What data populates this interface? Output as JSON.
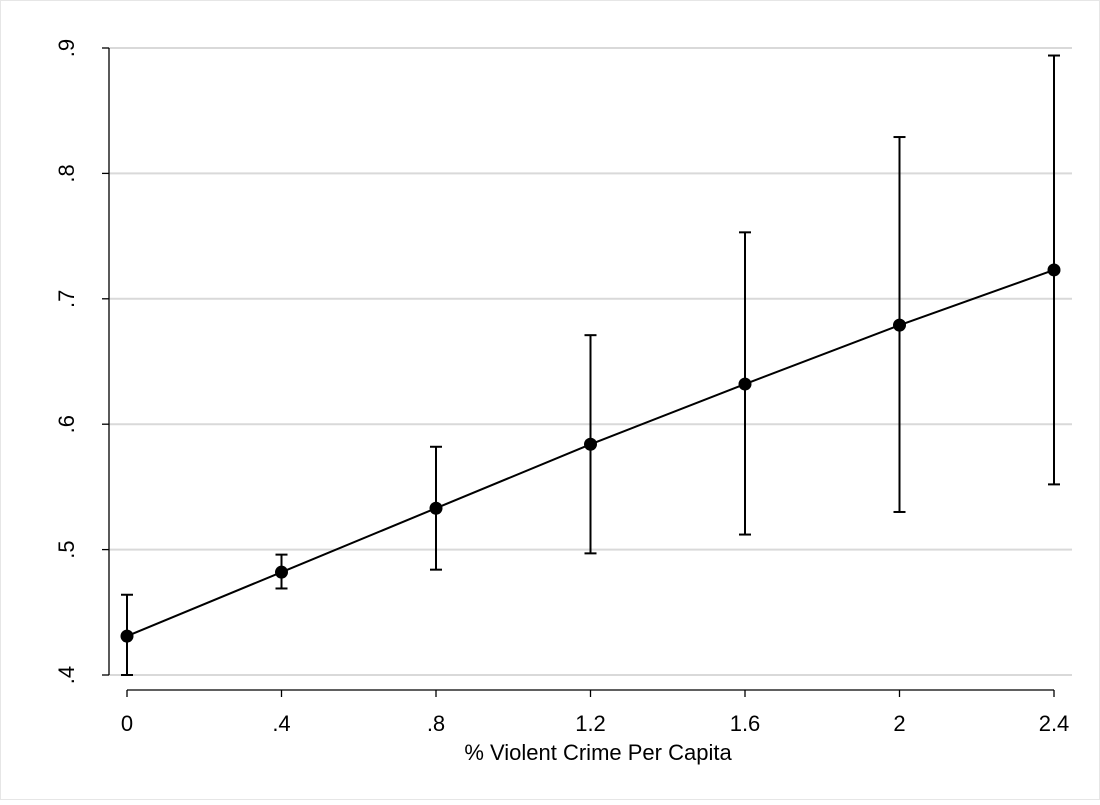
{
  "chart_data": {
    "type": "line",
    "title": "",
    "xlabel": "% Violent Crime Per Capita",
    "ylabel": "",
    "xlim": [
      0,
      2.4
    ],
    "ylim": [
      0.4,
      0.9
    ],
    "x_ticks": [
      {
        "value": 0,
        "label": "0"
      },
      {
        "value": 0.4,
        "label": ".4"
      },
      {
        "value": 0.8,
        "label": ".8"
      },
      {
        "value": 1.2,
        "label": "1.2"
      },
      {
        "value": 1.6,
        "label": "1.6"
      },
      {
        "value": 2.0,
        "label": "2"
      },
      {
        "value": 2.4,
        "label": "2.4"
      }
    ],
    "y_ticks": [
      {
        "value": 0.4,
        "label": ".4"
      },
      {
        "value": 0.5,
        "label": ".5"
      },
      {
        "value": 0.6,
        "label": ".6"
      },
      {
        "value": 0.7,
        "label": ".7"
      },
      {
        "value": 0.8,
        "label": ".8"
      },
      {
        "value": 0.9,
        "label": ".9"
      }
    ],
    "grid": "horizontal",
    "series": [
      {
        "x": [
          0,
          0.4,
          0.8,
          1.2,
          1.6,
          2.0,
          2.4
        ],
        "y": [
          0.431,
          0.482,
          0.533,
          0.584,
          0.632,
          0.679,
          0.723
        ],
        "lower": [
          0.4,
          0.469,
          0.484,
          0.497,
          0.512,
          0.53,
          0.552
        ],
        "upper": [
          0.464,
          0.496,
          0.582,
          0.671,
          0.753,
          0.829,
          0.894
        ],
        "color": "#000000"
      }
    ],
    "colors": {
      "grid": "#d9d9d9",
      "axis": "#000000",
      "marker": "#000000",
      "frame": "#e6e6e6"
    }
  }
}
